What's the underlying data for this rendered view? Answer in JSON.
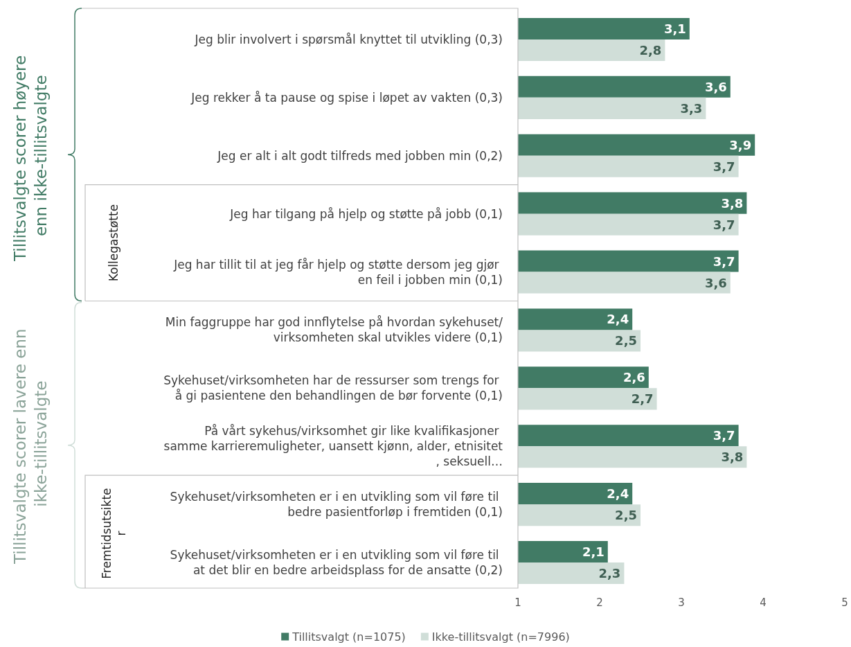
{
  "chart_data": {
    "type": "bar",
    "orientation": "horizontal",
    "categories": [
      "Jeg blir involvert i spørsmål knyttet til utvikling (0,3)",
      "Jeg rekker å ta pause og spise i løpet av vakten (0,3)",
      "Jeg er alt i alt godt tilfreds med jobben min (0,2)",
      "Jeg har tilgang på hjelp og støtte på jobb (0,1)",
      "Jeg har tillit til at jeg får hjelp og støtte dersom jeg gjør en feil i jobben min (0,1)",
      "Min faggruppe har god innflytelse på hvordan sykehuset/virksomheten skal utvikles videre (0,1)",
      "Sykehuset/virksomheten har de ressurser som trengs for å gi pasientene den behandlingen de bør forvente (0,1)",
      "På vårt sykehus/virksomhet gir like kvalifikasjoner samme karrieremuligheter, uansett kjønn, alder, etnisitet, seksuell…",
      "Sykehuset/virksomheten er i en utvikling som vil føre til bedre pasientforløp i fremtiden (0,1)",
      "Sykehuset/virksomheten er i en utvikling som vil føre til at det blir en bedre arbeidsplass for de ansatte (0,2)"
    ],
    "series": [
      {
        "name": "Tillitsvalgt (n=1075)",
        "color": "#417b65",
        "values": [
          3.1,
          3.6,
          3.9,
          3.8,
          3.7,
          2.4,
          2.6,
          3.7,
          2.4,
          2.1
        ],
        "value_labels": [
          "3,1",
          "3,6",
          "3,9",
          "3,8",
          "3,7",
          "2,4",
          "2,6",
          "3,7",
          "2,4",
          "2,1"
        ]
      },
      {
        "name": "Ikke-tillitsvalgt (n=7996)",
        "color": "#d0ded8",
        "values": [
          2.8,
          3.3,
          3.7,
          3.7,
          3.6,
          2.5,
          2.7,
          3.8,
          2.5,
          2.3
        ],
        "value_labels": [
          "2,8",
          "3,3",
          "3,7",
          "3,7",
          "3,6",
          "2,5",
          "2,7",
          "3,8",
          "2,5",
          "2,3"
        ]
      }
    ],
    "xlim": [
      1,
      5
    ],
    "xticks": [
      1,
      2,
      3,
      4,
      5
    ],
    "legend": "bottom",
    "annotations": [
      "Tillitsvalgte scorer høyere enn ikke-tillitsvalgte",
      "Tillitsvalgte scorer lavere enn ikke-tillitsvalgte",
      "Kollegastøtte",
      "Fremtidsutsikter"
    ]
  }
}
